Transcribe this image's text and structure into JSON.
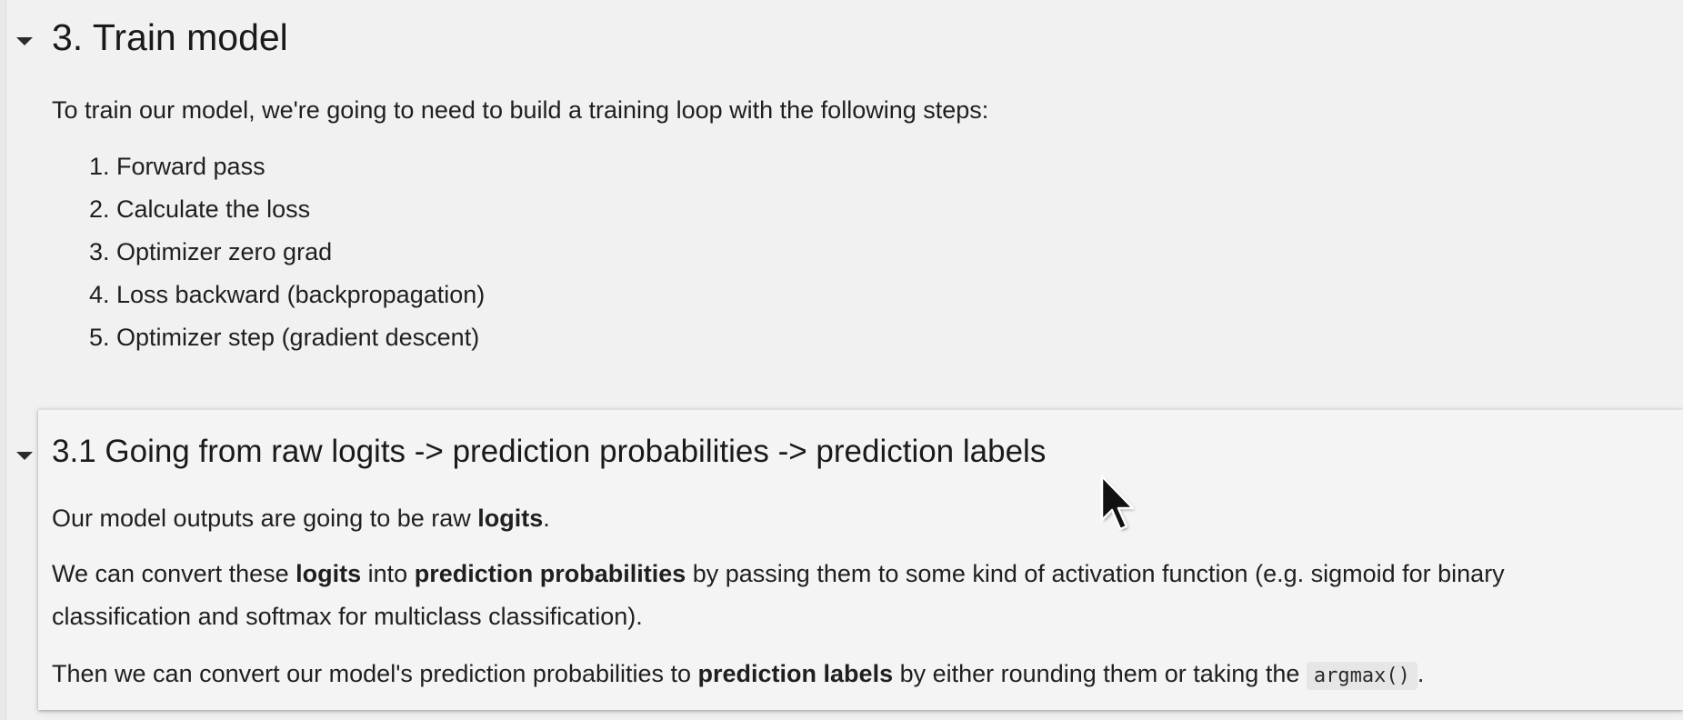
{
  "section3": {
    "title": "3. Train model",
    "intro": "To train our model, we're going to need to build a training loop with the following steps:",
    "steps": [
      "1. Forward pass",
      "2. Calculate the loss",
      "3. Optimizer zero grad",
      "4. Loss backward (backpropagation)",
      "5. Optimizer step (gradient descent)"
    ]
  },
  "section31": {
    "title": "3.1 Going from raw logits -> prediction probabilities -> prediction labels",
    "p1": {
      "before": "Our model outputs are going to be raw ",
      "bold": "logits",
      "after": "."
    },
    "p2": {
      "a": "We can convert these ",
      "b1": "logits",
      "c": " into ",
      "b2": "prediction probabilities",
      "d": " by passing them to some kind of activation function (e.g. sigmoid for binary",
      "line2": "classification and softmax for multiclass classification)."
    },
    "p3": {
      "a": "Then we can convert our model's prediction probabilities to ",
      "bold": "prediction labels",
      "b": " by either rounding them or taking the ",
      "code": "argmax()",
      "c": "."
    }
  },
  "icons": {
    "toggle": "caret-down-icon",
    "cursor": "mouse-pointer-icon"
  },
  "colors": {
    "background": "#f1f1f1",
    "card": "#f4f4f4",
    "text": "#1f1f1f",
    "code_bg": "#e6e6e6"
  }
}
